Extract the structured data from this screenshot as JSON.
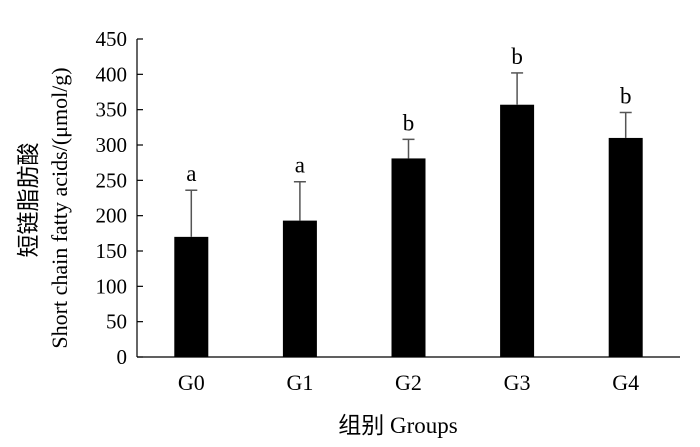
{
  "chart_data": {
    "type": "bar",
    "categories": [
      "G0",
      "G1",
      "G2",
      "G3",
      "G4"
    ],
    "values": [
      170,
      193,
      281,
      357,
      310
    ],
    "errors": [
      66,
      55,
      27,
      45,
      36
    ],
    "significance_letters": [
      "a",
      "a",
      "b",
      "b",
      "b"
    ],
    "ylim": [
      0,
      450
    ],
    "yticks": [
      "0",
      "50",
      "100",
      "150",
      "200",
      "250",
      "300",
      "350",
      "400",
      "450"
    ],
    "ylabel_line1": "短链脂肪酸",
    "ylabel_line2": "Short chain fatty acids/(μmol/g)",
    "xlabel": "组别 Groups",
    "bar_color": "#000000",
    "error_bar_color": "#555555",
    "grid": false
  }
}
